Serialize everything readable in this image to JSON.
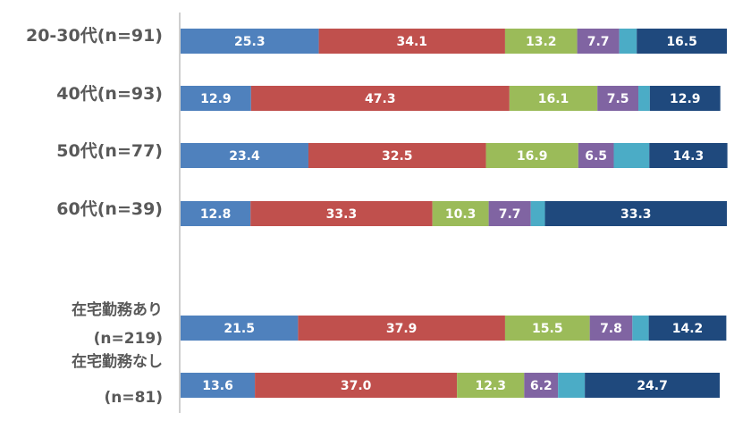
{
  "chart_data": {
    "type": "bar",
    "orientation": "horizontal",
    "stacked": true,
    "title": "",
    "xlabel": "",
    "ylabel": "",
    "xlim": [
      0,
      100
    ],
    "grid": false,
    "legend": "none",
    "categories": [
      {
        "lines": [
          "20-30代(n=91)"
        ]
      },
      {
        "lines": [
          "40代(n=93)"
        ]
      },
      {
        "lines": [
          "50代(n=77)"
        ]
      },
      {
        "lines": [
          "60代(n=39)"
        ]
      },
      {
        "lines": [
          "在宅勤務あり",
          "(n=219)"
        ]
      },
      {
        "lines": [
          "在宅勤務なし",
          "(n=81)"
        ]
      }
    ],
    "group_gap_after": 3,
    "segment_colors": [
      "#4f81bd",
      "#c0504d",
      "#9bbb59",
      "#8064a2",
      "#4bacc6",
      "#1f497d"
    ],
    "values": [
      [
        25.3,
        34.1,
        13.2,
        7.7,
        3.2,
        16.5
      ],
      [
        12.9,
        47.3,
        16.1,
        7.5,
        2.1,
        12.9
      ],
      [
        23.4,
        32.5,
        16.9,
        6.5,
        6.5,
        14.3
      ],
      [
        12.8,
        33.3,
        10.3,
        7.7,
        2.6,
        33.3
      ],
      [
        21.5,
        37.9,
        15.5,
        7.8,
        3.0,
        14.2
      ],
      [
        13.6,
        37.0,
        12.3,
        6.2,
        4.9,
        24.7
      ]
    ],
    "data_labels": [
      [
        "25.3",
        "34.1",
        "13.2",
        "7.7",
        "",
        "16.5"
      ],
      [
        "12.9",
        "47.3",
        "16.1",
        "7.5",
        "",
        "12.9"
      ],
      [
        "23.4",
        "32.5",
        "16.9",
        "6.5",
        "",
        "14.3"
      ],
      [
        "12.8",
        "33.3",
        "10.3",
        "7.7",
        "",
        "33.3"
      ],
      [
        "21.5",
        "37.9",
        "15.5",
        "7.8",
        "",
        "14.2"
      ],
      [
        "13.6",
        "37.0",
        "12.3",
        "6.2",
        "",
        "24.7"
      ]
    ]
  }
}
